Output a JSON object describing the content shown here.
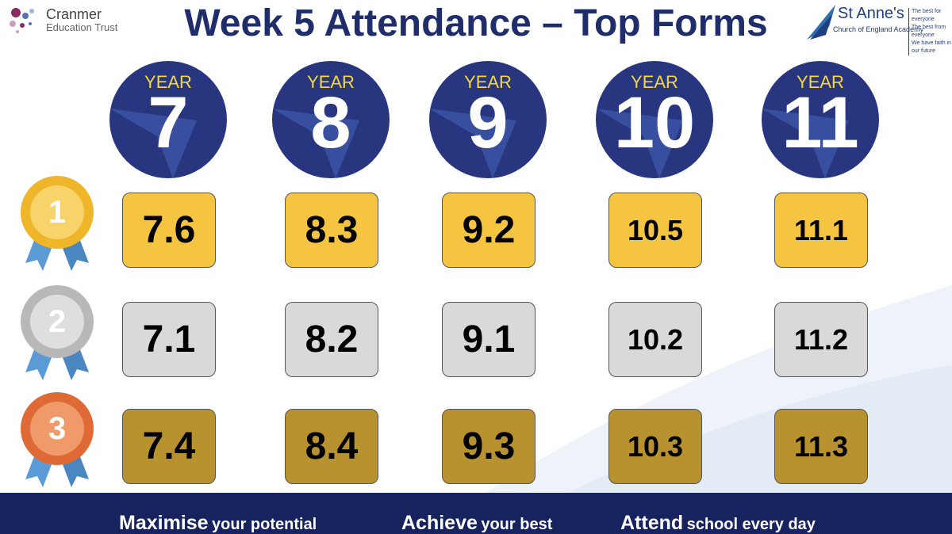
{
  "header": {
    "title": "Week 5 Attendance – Top Forms",
    "left_logo": {
      "name": "Cranmer",
      "subtitle": "Education Trust"
    },
    "right_logo": {
      "name": "St Anne's",
      "subtitle": "Church of England Academy",
      "taglines": [
        "The best for everyone",
        "The best from everyone",
        "We have faith in our future"
      ]
    }
  },
  "years": [
    {
      "label": "YEAR",
      "number": "7"
    },
    {
      "label": "YEAR",
      "number": "8"
    },
    {
      "label": "YEAR",
      "number": "9"
    },
    {
      "label": "YEAR",
      "number": "10"
    },
    {
      "label": "YEAR",
      "number": "11"
    }
  ],
  "rows": [
    {
      "place": "1",
      "forms": [
        "7.6",
        "8.3",
        "9.2",
        "10.5",
        "11.1"
      ]
    },
    {
      "place": "2",
      "forms": [
        "7.1",
        "8.2",
        "9.1",
        "10.2",
        "11.2"
      ]
    },
    {
      "place": "3",
      "forms": [
        "7.4",
        "8.4",
        "9.3",
        "10.3",
        "11.3"
      ]
    }
  ],
  "footer": [
    {
      "strong": "Maximise",
      "rest": "your potential"
    },
    {
      "strong": "Achieve",
      "rest": "your best"
    },
    {
      "strong": "Attend",
      "rest": "school every day"
    }
  ]
}
